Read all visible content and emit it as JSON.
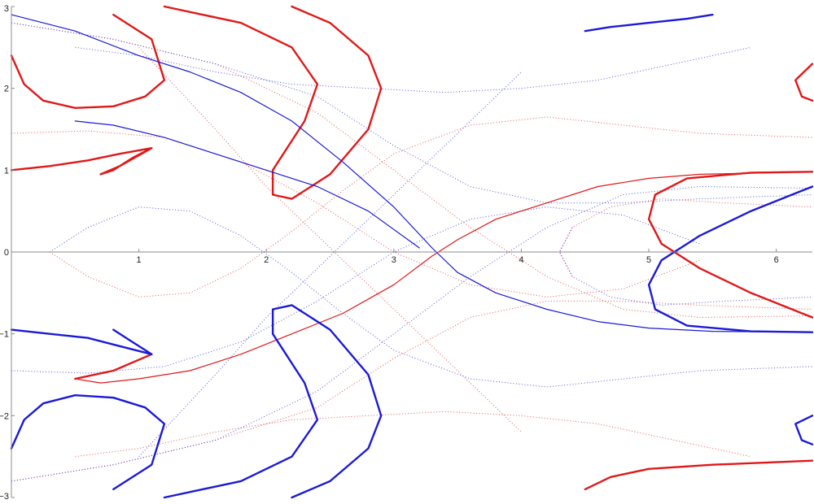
{
  "chart_data": {
    "type": "scatter",
    "title": "",
    "xlabel": "",
    "ylabel": "",
    "xlim": [
      0,
      6.283
    ],
    "ylim": [
      -3,
      3
    ],
    "grid": false,
    "x_ticks": [
      1,
      2,
      3,
      4,
      5,
      6
    ],
    "y_ticks": [
      -3,
      -2,
      -1,
      0,
      1,
      2,
      3
    ],
    "x_tick_labels": [
      "1",
      "2",
      "3",
      "4",
      "5",
      "6"
    ],
    "y_tick_labels": [
      "−3",
      "−2",
      "−1",
      "0",
      "1",
      "2",
      "3"
    ],
    "colors": {
      "red": "#e01818",
      "blue": "#1a1ad8"
    },
    "series": [
      {
        "color": "red",
        "style": "bold",
        "points": [
          [
            0.0,
            1.0
          ],
          [
            0.3,
            1.05
          ],
          [
            0.6,
            1.12
          ],
          [
            0.85,
            1.2
          ],
          [
            1.1,
            1.27
          ],
          [
            0.95,
            1.15
          ],
          [
            0.8,
            1.0
          ],
          [
            0.7,
            0.95
          ],
          [
            0.85,
            1.05
          ],
          [
            1.1,
            1.27
          ]
        ]
      },
      {
        "color": "red",
        "style": "bold",
        "points": [
          [
            0.0,
            2.4
          ],
          [
            0.1,
            2.05
          ],
          [
            0.25,
            1.85
          ],
          [
            0.5,
            1.76
          ],
          [
            0.8,
            1.78
          ],
          [
            1.05,
            1.9
          ],
          [
            1.2,
            2.1
          ],
          [
            1.1,
            2.6
          ],
          [
            0.8,
            2.9
          ]
        ]
      },
      {
        "color": "red",
        "style": "bold",
        "points": [
          [
            1.2,
            3.0
          ],
          [
            1.8,
            2.8
          ],
          [
            2.2,
            2.5
          ],
          [
            2.4,
            2.05
          ],
          [
            2.3,
            1.6
          ],
          [
            2.05,
            1.0
          ],
          [
            2.05,
            0.7
          ],
          [
            2.2,
            0.65
          ],
          [
            2.5,
            0.95
          ],
          [
            2.8,
            1.5
          ],
          [
            2.9,
            2.0
          ],
          [
            2.8,
            2.4
          ],
          [
            2.5,
            2.8
          ],
          [
            2.2,
            3.0
          ]
        ]
      },
      {
        "color": "red",
        "style": "normal",
        "points": [
          [
            0.5,
            -1.55
          ],
          [
            0.7,
            -1.6
          ],
          [
            1.0,
            -1.55
          ],
          [
            1.4,
            -1.45
          ],
          [
            1.8,
            -1.25
          ],
          [
            2.2,
            -1.0
          ],
          [
            2.6,
            -0.75
          ],
          [
            3.0,
            -0.4
          ],
          [
            3.3,
            -0.05
          ],
          [
            3.5,
            0.15
          ],
          [
            3.8,
            0.4
          ],
          [
            4.2,
            0.6
          ],
          [
            4.6,
            0.8
          ],
          [
            5.0,
            0.9
          ],
          [
            5.4,
            0.95
          ],
          [
            6.0,
            0.97
          ],
          [
            6.283,
            0.98
          ]
        ]
      },
      {
        "color": "red",
        "style": "bold",
        "points": [
          [
            0.5,
            -1.55
          ],
          [
            0.8,
            -1.45
          ],
          [
            1.1,
            -1.25
          ]
        ]
      },
      {
        "color": "red",
        "style": "bold",
        "points": [
          [
            6.283,
            0.98
          ],
          [
            5.8,
            0.97
          ],
          [
            5.3,
            0.9
          ],
          [
            5.05,
            0.7
          ],
          [
            5.0,
            0.4
          ],
          [
            5.1,
            0.1
          ],
          [
            5.4,
            -0.2
          ],
          [
            5.8,
            -0.5
          ],
          [
            6.283,
            -0.8
          ]
        ]
      },
      {
        "color": "red",
        "style": "bold",
        "points": [
          [
            4.5,
            -2.9
          ],
          [
            4.7,
            -2.75
          ],
          [
            5.0,
            -2.65
          ],
          [
            5.5,
            -2.6
          ],
          [
            6.283,
            -2.55
          ]
        ]
      },
      {
        "color": "red",
        "style": "bold",
        "points": [
          [
            6.283,
            2.3
          ],
          [
            6.15,
            2.1
          ],
          [
            6.2,
            1.9
          ],
          [
            6.283,
            1.85
          ]
        ]
      },
      {
        "color": "blue",
        "style": "bold",
        "points": [
          [
            0.0,
            -0.95
          ],
          [
            0.3,
            -1.0
          ],
          [
            0.6,
            -1.05
          ],
          [
            0.85,
            -1.15
          ],
          [
            1.1,
            -1.25
          ],
          [
            0.95,
            -1.1
          ],
          [
            0.8,
            -0.95
          ]
        ]
      },
      {
        "color": "blue",
        "style": "bold",
        "points": [
          [
            0.0,
            -2.4
          ],
          [
            0.1,
            -2.05
          ],
          [
            0.25,
            -1.85
          ],
          [
            0.5,
            -1.75
          ],
          [
            0.8,
            -1.78
          ],
          [
            1.05,
            -1.9
          ],
          [
            1.2,
            -2.1
          ],
          [
            1.1,
            -2.6
          ],
          [
            0.8,
            -2.9
          ]
        ]
      },
      {
        "color": "blue",
        "style": "bold",
        "points": [
          [
            1.2,
            -3.0
          ],
          [
            1.8,
            -2.8
          ],
          [
            2.2,
            -2.5
          ],
          [
            2.4,
            -2.05
          ],
          [
            2.3,
            -1.6
          ],
          [
            2.05,
            -1.0
          ],
          [
            2.05,
            -0.7
          ],
          [
            2.2,
            -0.65
          ],
          [
            2.5,
            -0.95
          ],
          [
            2.8,
            -1.5
          ],
          [
            2.9,
            -2.0
          ],
          [
            2.8,
            -2.4
          ],
          [
            2.5,
            -2.8
          ],
          [
            2.2,
            -3.0
          ]
        ]
      },
      {
        "color": "blue",
        "style": "normal",
        "points": [
          [
            0.0,
            2.9
          ],
          [
            0.5,
            2.7
          ],
          [
            1.0,
            2.4
          ],
          [
            1.4,
            2.2
          ],
          [
            1.8,
            1.95
          ],
          [
            2.2,
            1.6
          ],
          [
            2.6,
            1.1
          ],
          [
            3.0,
            0.55
          ],
          [
            3.3,
            0.05
          ],
          [
            3.5,
            -0.25
          ],
          [
            3.8,
            -0.5
          ],
          [
            4.2,
            -0.7
          ],
          [
            4.6,
            -0.85
          ],
          [
            5.0,
            -0.93
          ],
          [
            5.5,
            -0.97
          ],
          [
            6.283,
            -0.98
          ]
        ]
      },
      {
        "color": "blue",
        "style": "normal",
        "points": [
          [
            0.5,
            1.6
          ],
          [
            0.8,
            1.55
          ],
          [
            1.2,
            1.4
          ],
          [
            1.8,
            1.1
          ],
          [
            2.4,
            0.8
          ],
          [
            2.8,
            0.5
          ],
          [
            3.2,
            0.05
          ]
        ]
      },
      {
        "color": "blue",
        "style": "bold",
        "points": [
          [
            6.283,
            -0.98
          ],
          [
            5.8,
            -0.97
          ],
          [
            5.3,
            -0.9
          ],
          [
            5.05,
            -0.7
          ],
          [
            5.0,
            -0.4
          ],
          [
            5.1,
            -0.1
          ],
          [
            5.4,
            0.2
          ],
          [
            5.8,
            0.5
          ],
          [
            6.283,
            0.8
          ]
        ]
      },
      {
        "color": "blue",
        "style": "bold",
        "points": [
          [
            4.5,
            2.7
          ],
          [
            4.7,
            2.75
          ],
          [
            5.0,
            2.8
          ],
          [
            5.3,
            2.85
          ],
          [
            5.5,
            2.9
          ]
        ]
      },
      {
        "color": "blue",
        "style": "bold",
        "points": [
          [
            6.283,
            -2.0
          ],
          [
            6.15,
            -2.1
          ],
          [
            6.2,
            -2.3
          ],
          [
            6.283,
            -2.35
          ]
        ]
      }
    ],
    "faint_series": [
      {
        "color": "red",
        "points": [
          [
            0.0,
            2.8
          ],
          [
            0.8,
            2.6
          ],
          [
            1.6,
            2.3
          ],
          [
            2.4,
            1.7
          ],
          [
            3.0,
            1.0
          ],
          [
            3.6,
            0.3
          ],
          [
            4.2,
            -0.3
          ],
          [
            4.8,
            -0.7
          ],
          [
            5.4,
            -0.8
          ],
          [
            6.283,
            -0.78
          ]
        ]
      },
      {
        "color": "red",
        "points": [
          [
            0.0,
            -2.8
          ],
          [
            0.8,
            -2.6
          ],
          [
            1.6,
            -2.3
          ],
          [
            2.4,
            -1.9
          ],
          [
            3.0,
            -1.3
          ],
          [
            3.6,
            -0.8
          ],
          [
            4.2,
            -0.6
          ],
          [
            4.8,
            -0.6
          ],
          [
            5.4,
            -0.65
          ],
          [
            6.283,
            -0.7
          ]
        ]
      },
      {
        "color": "red",
        "points": [
          [
            0.0,
            1.45
          ],
          [
            0.6,
            1.48
          ],
          [
            1.2,
            1.4
          ],
          [
            1.8,
            1.1
          ],
          [
            2.4,
            0.6
          ],
          [
            3.0,
            0.0
          ],
          [
            3.6,
            -0.4
          ],
          [
            4.2,
            -0.55
          ],
          [
            4.8,
            -0.45
          ],
          [
            5.4,
            -0.1
          ]
        ]
      },
      {
        "color": "red",
        "points": [
          [
            0.3,
            0.0
          ],
          [
            0.6,
            -0.3
          ],
          [
            1.0,
            -0.55
          ],
          [
            1.4,
            -0.5
          ],
          [
            1.8,
            -0.2
          ],
          [
            2.2,
            0.25
          ],
          [
            2.6,
            0.75
          ],
          [
            3.0,
            1.2
          ],
          [
            3.6,
            1.55
          ],
          [
            4.2,
            1.65
          ],
          [
            4.8,
            1.55
          ],
          [
            5.4,
            1.45
          ],
          [
            6.283,
            1.4
          ]
        ]
      },
      {
        "color": "red",
        "points": [
          [
            0.5,
            -2.5
          ],
          [
            1.0,
            -2.4
          ],
          [
            1.6,
            -2.2
          ],
          [
            2.2,
            -2.05
          ],
          [
            2.8,
            -2.0
          ],
          [
            3.4,
            -1.95
          ],
          [
            4.0,
            -2.0
          ],
          [
            4.6,
            -2.1
          ],
          [
            5.2,
            -2.3
          ],
          [
            5.8,
            -2.5
          ]
        ]
      },
      {
        "color": "red",
        "points": [
          [
            1.0,
            2.5
          ],
          [
            1.3,
            2.0
          ],
          [
            1.6,
            1.5
          ],
          [
            2.0,
            0.8
          ],
          [
            2.4,
            0.2
          ],
          [
            2.8,
            -0.4
          ],
          [
            3.2,
            -1.0
          ],
          [
            3.6,
            -1.6
          ],
          [
            4.0,
            -2.2
          ]
        ]
      },
      {
        "color": "red",
        "points": [
          [
            4.4,
            -0.3
          ],
          [
            4.3,
            0.0
          ],
          [
            4.4,
            0.3
          ],
          [
            4.7,
            0.55
          ],
          [
            5.1,
            0.65
          ],
          [
            5.6,
            0.6
          ],
          [
            6.283,
            0.55
          ]
        ]
      },
      {
        "color": "blue",
        "points": [
          [
            0.0,
            -2.8
          ],
          [
            0.8,
            -2.6
          ],
          [
            1.6,
            -2.3
          ],
          [
            2.4,
            -1.7
          ],
          [
            3.0,
            -1.0
          ],
          [
            3.6,
            -0.3
          ],
          [
            4.2,
            0.3
          ],
          [
            4.8,
            0.7
          ],
          [
            5.4,
            0.8
          ],
          [
            6.283,
            0.78
          ]
        ]
      },
      {
        "color": "blue",
        "points": [
          [
            0.0,
            2.8
          ],
          [
            0.8,
            2.6
          ],
          [
            1.6,
            2.3
          ],
          [
            2.4,
            1.9
          ],
          [
            3.0,
            1.3
          ],
          [
            3.6,
            0.8
          ],
          [
            4.2,
            0.6
          ],
          [
            4.8,
            0.6
          ],
          [
            5.4,
            0.65
          ],
          [
            6.283,
            0.7
          ]
        ]
      },
      {
        "color": "blue",
        "points": [
          [
            0.0,
            -1.45
          ],
          [
            0.6,
            -1.48
          ],
          [
            1.2,
            -1.4
          ],
          [
            1.8,
            -1.1
          ],
          [
            2.4,
            -0.6
          ],
          [
            3.0,
            0.0
          ],
          [
            3.6,
            0.4
          ],
          [
            4.2,
            0.55
          ],
          [
            4.8,
            0.45
          ],
          [
            5.4,
            0.1
          ]
        ]
      },
      {
        "color": "blue",
        "points": [
          [
            0.3,
            0.0
          ],
          [
            0.6,
            0.3
          ],
          [
            1.0,
            0.55
          ],
          [
            1.4,
            0.5
          ],
          [
            1.8,
            0.2
          ],
          [
            2.2,
            -0.25
          ],
          [
            2.6,
            -0.75
          ],
          [
            3.0,
            -1.2
          ],
          [
            3.6,
            -1.55
          ],
          [
            4.2,
            -1.65
          ],
          [
            4.8,
            -1.55
          ],
          [
            5.4,
            -1.45
          ],
          [
            6.283,
            -1.4
          ]
        ]
      },
      {
        "color": "blue",
        "points": [
          [
            0.5,
            2.5
          ],
          [
            1.0,
            2.4
          ],
          [
            1.6,
            2.2
          ],
          [
            2.2,
            2.05
          ],
          [
            2.8,
            2.0
          ],
          [
            3.4,
            1.95
          ],
          [
            4.0,
            2.0
          ],
          [
            4.6,
            2.1
          ],
          [
            5.2,
            2.3
          ],
          [
            5.8,
            2.5
          ]
        ]
      },
      {
        "color": "blue",
        "points": [
          [
            1.0,
            -2.5
          ],
          [
            1.3,
            -2.0
          ],
          [
            1.6,
            -1.5
          ],
          [
            2.0,
            -0.8
          ],
          [
            2.4,
            -0.2
          ],
          [
            2.8,
            0.4
          ],
          [
            3.2,
            1.0
          ],
          [
            3.6,
            1.6
          ],
          [
            4.0,
            2.2
          ]
        ]
      },
      {
        "color": "blue",
        "points": [
          [
            4.4,
            0.3
          ],
          [
            4.3,
            0.0
          ],
          [
            4.4,
            -0.3
          ],
          [
            4.7,
            -0.55
          ],
          [
            5.1,
            -0.65
          ],
          [
            5.6,
            -0.6
          ],
          [
            6.283,
            -0.55
          ]
        ]
      }
    ]
  }
}
